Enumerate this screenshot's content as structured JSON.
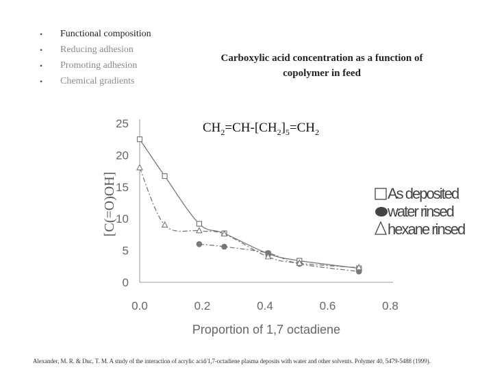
{
  "bullets": [
    {
      "text": "Functional composition"
    },
    {
      "text": "Reducing adhesion"
    },
    {
      "text": "Promoting adhesion"
    },
    {
      "text": "Chemical gradients"
    }
  ],
  "title_line1": "Carboxylic acid concentration as a function of",
  "title_line2": "copolymer in feed",
  "formula": {
    "p1": "CH",
    "s1": "2",
    "p2": "=CH-[CH",
    "s2": "2",
    "p3": "]",
    "s3": "5",
    "p4": "=CH",
    "s4": "2"
  },
  "citation": "Alexander, M. R. & Duc, T. M. A study of the interaction of acrylic acid/1,7-octadiene plasma deposits with water and other solvents. Polymer 40, 5479-5488 (1999).",
  "chart_data": {
    "type": "scatter",
    "xlabel": "Proportion of 1,7 octadiene",
    "ylabel": "[C(=O)OH]",
    "xlim": [
      0.0,
      0.8
    ],
    "ylim": [
      0,
      25
    ],
    "xticks": [
      "0.0",
      "0.2",
      "0.4",
      "0.6",
      "0.8"
    ],
    "yticks": [
      "0",
      "5",
      "10",
      "15",
      "20",
      "25"
    ],
    "grid": false,
    "legend_position": "right",
    "series": [
      {
        "name": "As deposited",
        "marker": "square",
        "line": "solid",
        "x": [
          0.0,
          0.08,
          0.19,
          0.27,
          0.41,
          0.51,
          0.7
        ],
        "y": [
          22.5,
          16.7,
          9.2,
          7.7,
          4.5,
          3.4,
          2.2
        ]
      },
      {
        "name": "water rinsed",
        "marker": "circle",
        "line": "dashdot",
        "x": [
          0.19,
          0.27,
          0.41,
          0.51,
          0.7
        ],
        "y": [
          6.0,
          5.6,
          4.6,
          2.9,
          1.7
        ]
      },
      {
        "name": "hexane rinsed",
        "marker": "triangle",
        "line": "dashdot",
        "x": [
          0.0,
          0.08,
          0.19,
          0.27,
          0.41,
          0.51,
          0.7
        ],
        "y": [
          18.0,
          9.0,
          8.1,
          7.6,
          4.0,
          3.0,
          2.3
        ]
      }
    ],
    "colors": {
      "axis": "#999999",
      "series": "#777777",
      "text": "#666666"
    }
  }
}
